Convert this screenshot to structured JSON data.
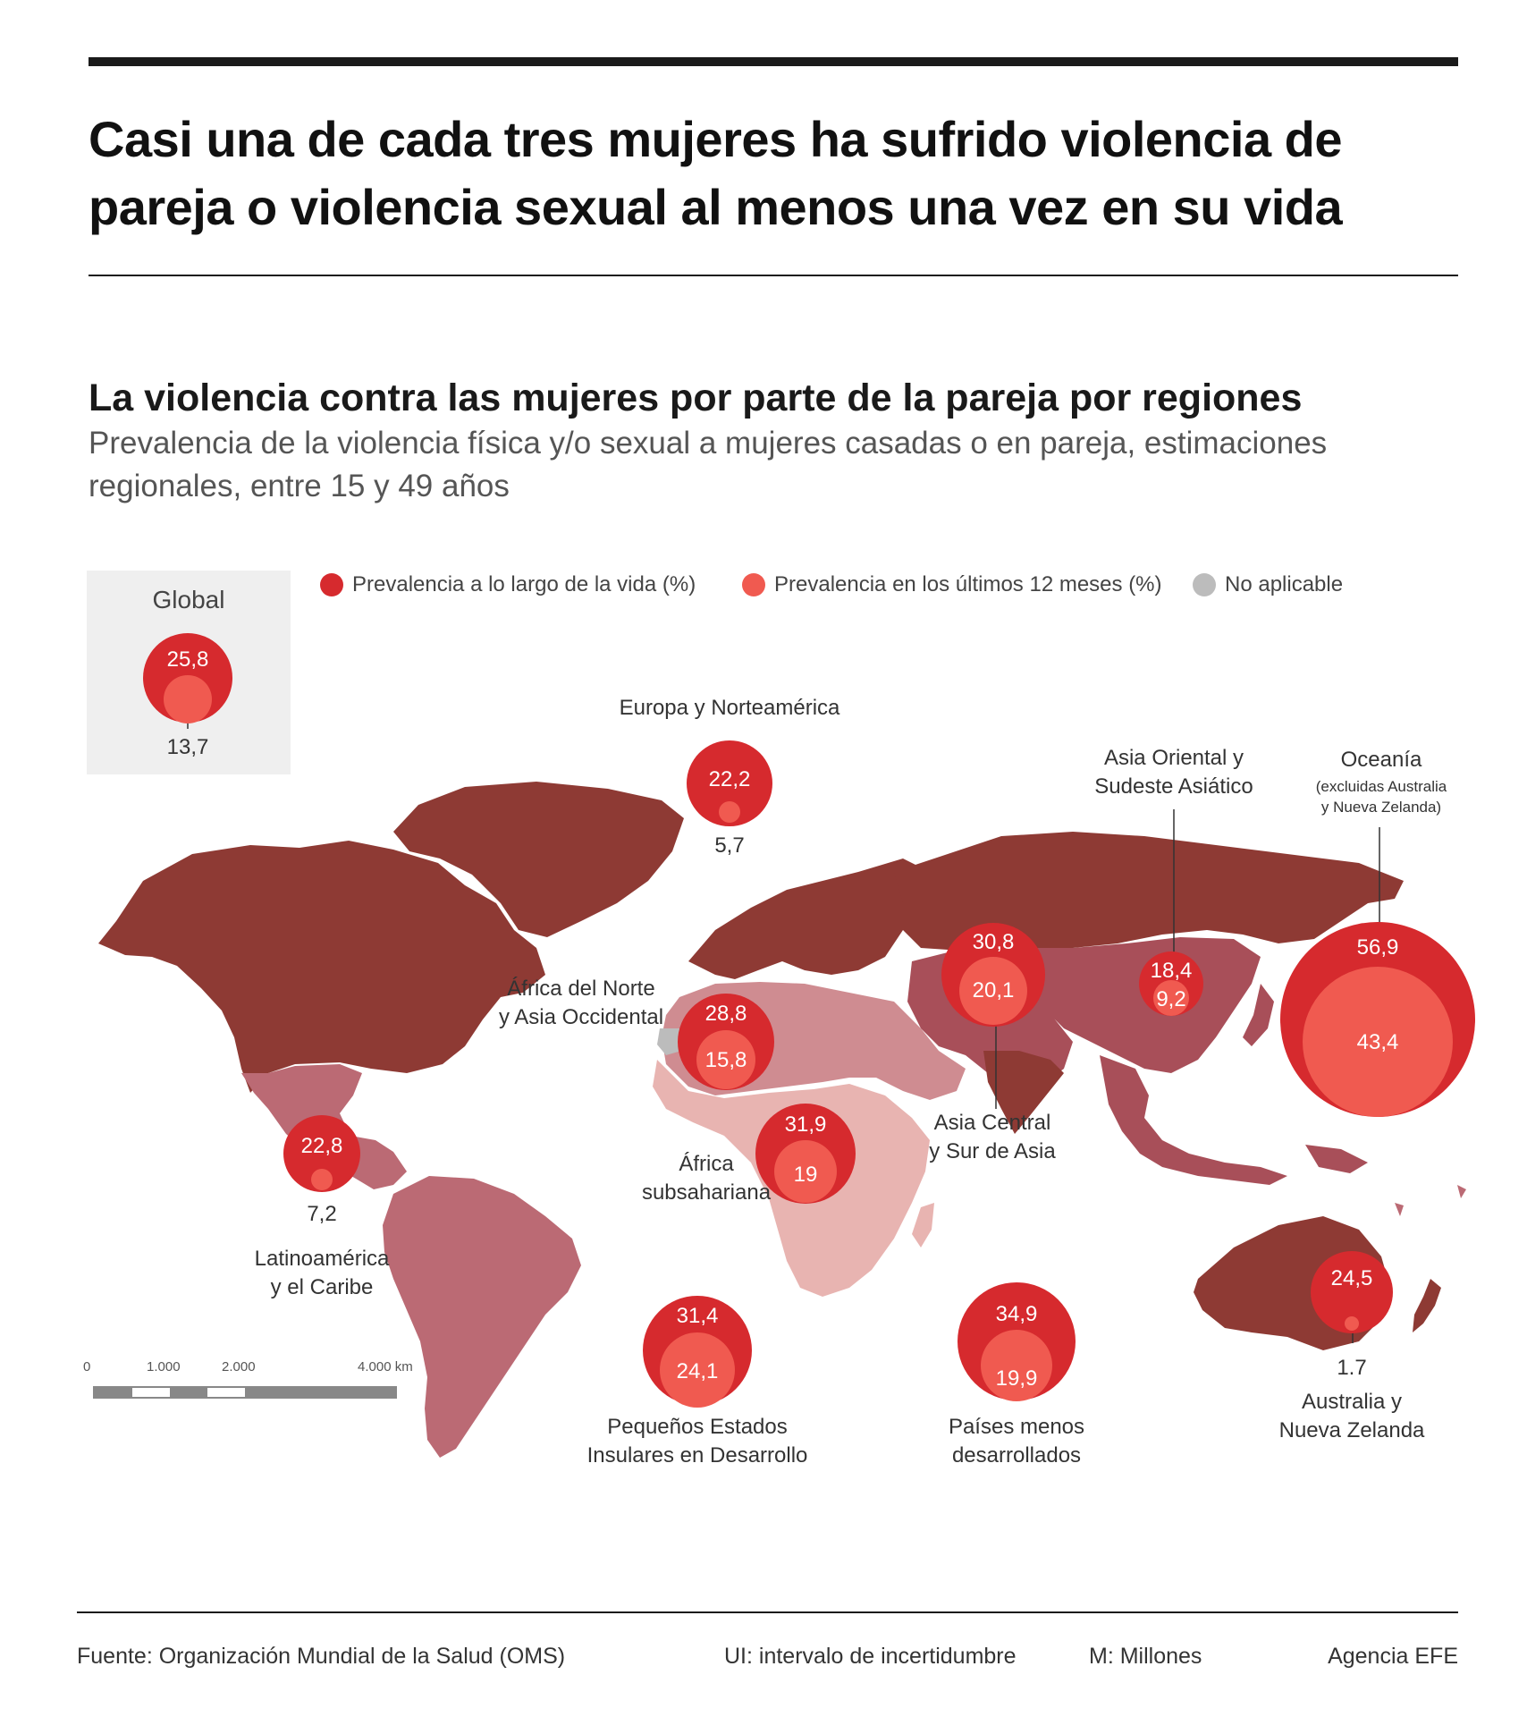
{
  "headline": "Casi una de cada tres mujeres ha sufrido violencia de pareja o violencia sexual al menos una vez en su vida",
  "subtitle": "La violencia contra las mujeres por parte de la pareja por regiones",
  "description": "Prevalencia de la violencia física y/o sexual a mujeres casadas o en pareja, estimaciones regionales, entre 15 y 49 años",
  "legend": {
    "lifetime": "Prevalencia a lo largo de la vida (%)",
    "last12": "Prevalencia en los últimos 12 meses (%)",
    "na": "No aplicable"
  },
  "colors": {
    "lifetime": "#d62a2e",
    "last12": "#f05a50",
    "na": "#bcbcbc",
    "north": "#8e3a34",
    "central_asia": "#a84f59",
    "latam": "#bb6a74",
    "mena": "#cf8c91",
    "africa": "#e8b4b1"
  },
  "global": {
    "title": "Global",
    "lifetime": "25,8",
    "last12": "13,7"
  },
  "regions": {
    "europa": {
      "name": "Europa y Norteamérica",
      "lifetime": "22,2",
      "last12": "5,7"
    },
    "asia_oriental": {
      "name1": "Asia Oriental y",
      "name2": "Sudeste Asiático",
      "lifetime": "18,4",
      "last12": "9,2"
    },
    "oceania": {
      "name": "Oceanía",
      "note1": "(excluidas Australia",
      "note2": "y Nueva Zelanda)",
      "lifetime": "56,9",
      "last12": "43,4"
    },
    "asia_central": {
      "name1": "Asia Central",
      "name2": "y Sur de Asia",
      "lifetime": "30,8",
      "last12": "20,1"
    },
    "africa_norte": {
      "name1": "África del Norte",
      "name2": "y Asia Occidental",
      "lifetime": "28,8",
      "last12": "15,8"
    },
    "africa_sub": {
      "name1": "África",
      "name2": "subsahariana",
      "lifetime": "31,9",
      "last12": "19"
    },
    "latam": {
      "name1": "Latinoamérica",
      "name2": "y el Caribe",
      "lifetime": "22,8",
      "last12": "7,2"
    },
    "islas": {
      "name1": "Pequeños Estados",
      "name2": "Insulares en Desarrollo",
      "lifetime": "31,4",
      "last12": "24,1"
    },
    "menos_desarrollados": {
      "name1": "Países menos",
      "name2": "desarrollados",
      "lifetime": "34,9",
      "last12": "19,9"
    },
    "australia": {
      "name1": "Australia y",
      "name2": "Nueva Zelanda",
      "lifetime": "24,5",
      "last12": "1.7"
    }
  },
  "scale": {
    "t0": "0",
    "t1": "1.000",
    "t2": "2.000",
    "t3": "4.000 km"
  },
  "footer": {
    "source": "Fuente: Organización Mundial de la Salud (OMS)",
    "ui": "UI: intervalo de incertidumbre",
    "m": "M: Millones",
    "agency": "Agencia EFE"
  }
}
